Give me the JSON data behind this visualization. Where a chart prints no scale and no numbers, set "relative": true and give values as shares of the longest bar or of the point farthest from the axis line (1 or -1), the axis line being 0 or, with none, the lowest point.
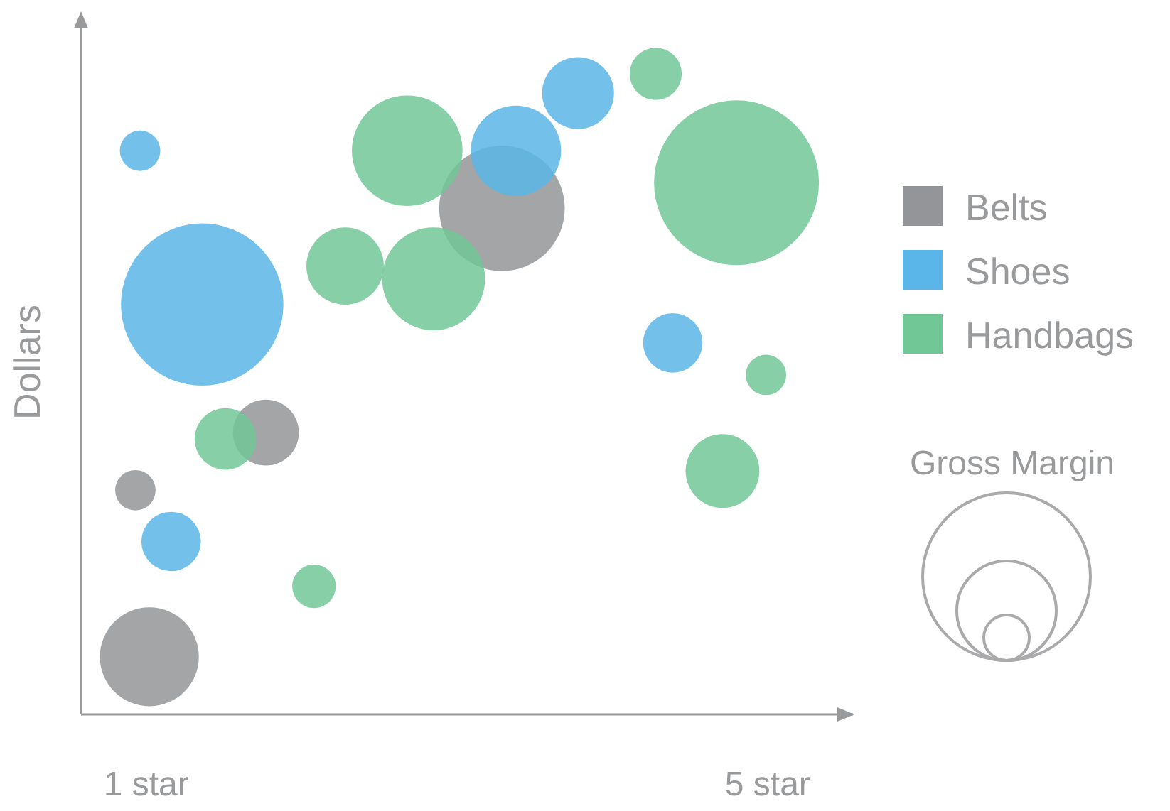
{
  "chart_data": {
    "type": "bubble",
    "ylabel": "Dollars",
    "relative": true,
    "xlim": [
      0.58,
      5.55
    ],
    "xticks": [
      {
        "value": 1,
        "label": "1 star"
      },
      {
        "value": 5,
        "label": "5 star"
      }
    ],
    "legend": "right",
    "grid": false,
    "annotations": [
      "Gross Margin"
    ],
    "series": [
      {
        "name": "Belts",
        "color": "#939598",
        "x": [
          3.29,
          1.77,
          0.93,
          1.02
        ],
        "values": [
          0.79,
          0.44,
          0.35,
          0.09
        ],
        "sizes": [
          0.58,
          0.16,
          0.06,
          0.36
        ]
      },
      {
        "name": "Shoes",
        "color": "#5ab6e8",
        "x": [
          0.96,
          1.36,
          3.38,
          3.78,
          4.39,
          1.16
        ],
        "values": [
          0.88,
          0.64,
          0.88,
          0.97,
          0.58,
          0.27
        ],
        "sizes": [
          0.06,
          0.97,
          0.3,
          0.19,
          0.13,
          0.13
        ]
      },
      {
        "name": "Handbags",
        "color": "#72c797",
        "x": [
          2.68,
          4.28,
          4.8,
          2.28,
          2.85,
          1.51,
          4.99,
          4.71,
          2.08
        ],
        "values": [
          0.88,
          1.0,
          0.83,
          0.7,
          0.68,
          0.43,
          0.53,
          0.38,
          0.2
        ],
        "sizes": [
          0.45,
          0.1,
          1,
          0.22,
          0.39,
          0.14,
          0.06,
          0.2,
          0.07
        ]
      }
    ]
  }
}
